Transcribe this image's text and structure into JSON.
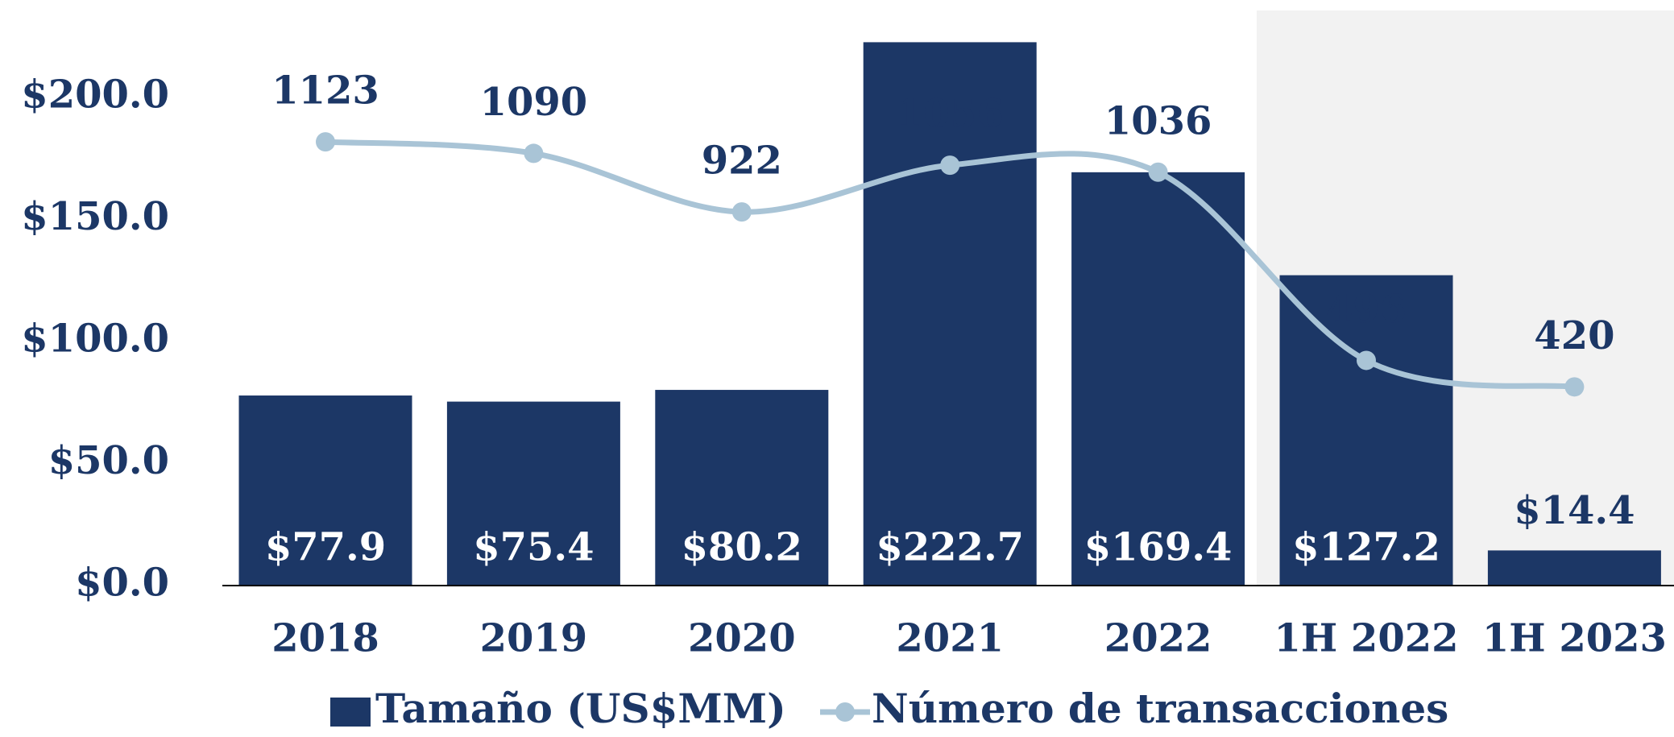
{
  "chart_data": {
    "type": "bar",
    "categories": [
      "2018",
      "2019",
      "2020",
      "2021",
      "2022",
      "1H 2022",
      "1H 2023"
    ],
    "series": [
      {
        "name": "Tamaño (US$MM)",
        "type": "bar",
        "color": "#1c3766",
        "values": [
          77.9,
          75.4,
          80.2,
          222.7,
          169.4,
          127.2,
          14.4
        ],
        "value_labels": [
          "$77.9",
          "$75.4",
          "$80.2",
          "$222.7",
          "$169.4",
          "$127.2",
          "$14.4"
        ]
      },
      {
        "name": "Número de transacciones",
        "type": "line",
        "axis": "y2",
        "color": "#a9c4d6",
        "values": [
          1123,
          1090,
          922,
          1056,
          1036,
          496,
          420
        ]
      }
    ],
    "ylim": [
      0,
      240
    ],
    "yticks": [
      {
        "value": 0,
        "label": "$0.0"
      },
      {
        "value": 50,
        "label": "$50.0"
      },
      {
        "value": 100,
        "label": "$100.0"
      },
      {
        "value": 150,
        "label": "$150.0"
      },
      {
        "value": 200,
        "label": "$200.0"
      }
    ],
    "y2lim": [
      -150,
      1530
    ],
    "grid": false,
    "legend": "bottom"
  }
}
